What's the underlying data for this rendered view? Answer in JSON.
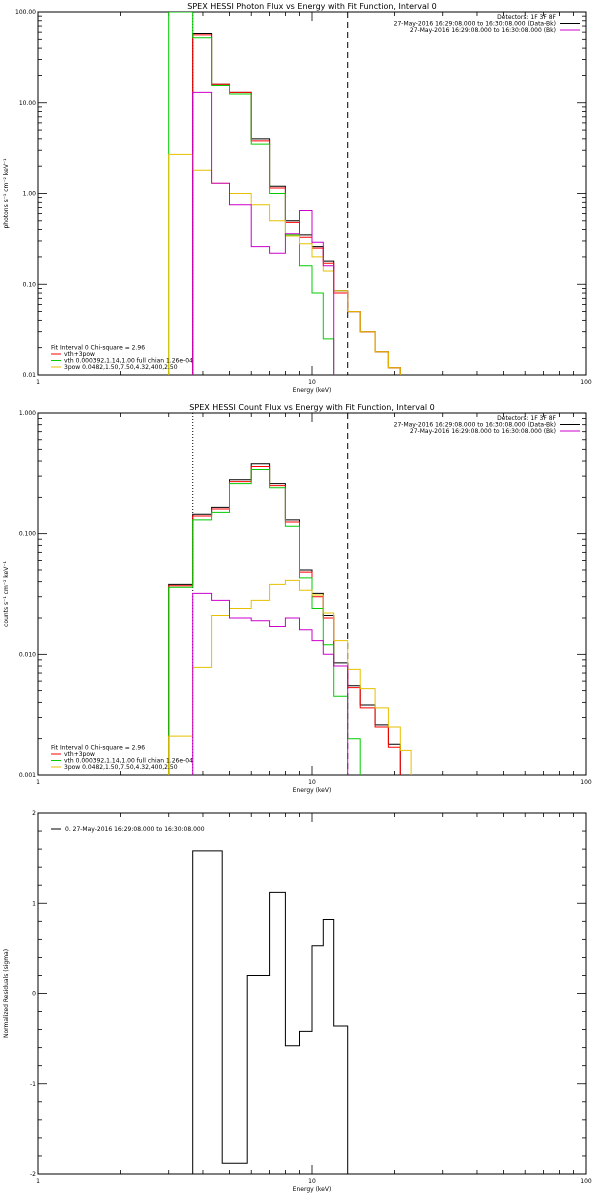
{
  "chart_data": [
    {
      "type": "line",
      "title": "SPEX HESSI Photon Flux vs Energy with Fit Function, Interval 0",
      "xlabel": "Energy (keV)",
      "ylabel": "photons s⁻¹ cm⁻² keV⁻¹",
      "xscale": "log",
      "yscale": "log",
      "xlim": [
        1,
        100
      ],
      "ylim": [
        0.01,
        100
      ],
      "x_ticks": [
        {
          "v": 1,
          "label": "1"
        },
        {
          "v": 10,
          "label": "10"
        },
        {
          "v": 100,
          "label": "100"
        }
      ],
      "y_ticks": [
        {
          "v": 0.01,
          "label": "0.01"
        },
        {
          "v": 0.1,
          "label": "0.10"
        },
        {
          "v": 1,
          "label": "1.00"
        },
        {
          "v": 10,
          "label": "10.00"
        },
        {
          "v": 100,
          "label": "100.00"
        }
      ],
      "header": [
        "Detectors: 1F 3F 8F",
        "27-May-2016 16:29:08.000 to 16:30:08.000 (Data-Bk)",
        "27-May-2016 16:29:08.000 to 16:30:08.000 (Bk)"
      ],
      "header_colors": [
        "#000000",
        "#000000",
        "#cc00cc"
      ],
      "legend": [
        "Fit Interval 0   Chi-square = 2.96",
        "vth+3pow",
        "vth 0.000392,1.14,1.00  full chian 1.26e-04",
        "3pow 0.0482,1.50,7.50,4.32,400,2.50"
      ],
      "legend_colors": [
        "#000000",
        "#ff0000",
        "#00cc00",
        "#e6c000"
      ],
      "vlines": [
        {
          "x": 3.67,
          "style": "dotted"
        },
        {
          "x": 13.5,
          "style": "dashed"
        }
      ],
      "edges": [
        3.0,
        3.67,
        4.3,
        5.0,
        6.0,
        7.0,
        8.0,
        9.0,
        10.0,
        11.0,
        12.0,
        13.5,
        15.0,
        17.0,
        19.0,
        21.0
      ],
      "series": [
        {
          "color": "#000000",
          "values": [
            null,
            58,
            16,
            13,
            4.0,
            1.2,
            0.5,
            0.35,
            0.26,
            0.18,
            0.085,
            0.05,
            0.03,
            0.018,
            0.012
          ]
        },
        {
          "color": "#ff0000",
          "values": [
            null,
            56,
            16,
            13,
            3.8,
            1.15,
            0.48,
            0.33,
            0.25,
            0.17,
            0.08,
            0.05,
            0.03,
            0.018,
            0.012
          ]
        },
        {
          "color": "#00cc00",
          "values": [
            100,
            52,
            15.5,
            12.5,
            3.5,
            1.0,
            0.35,
            0.16,
            0.08,
            0.025,
            null,
            null,
            null,
            null,
            null
          ]
        },
        {
          "color": "#e6c000",
          "values": [
            2.7,
            1.8,
            1.3,
            1.0,
            0.75,
            0.5,
            0.34,
            0.28,
            0.2,
            0.14,
            0.085,
            0.05,
            0.03,
            0.018,
            0.012
          ]
        },
        {
          "color": "#cc00cc",
          "values": [
            null,
            13,
            1.3,
            0.75,
            0.26,
            0.22,
            0.36,
            0.65,
            0.29,
            0.16,
            null,
            null,
            null,
            null,
            null
          ]
        }
      ]
    },
    {
      "type": "line",
      "title": "SPEX HESSI Count Flux vs Energy with Fit Function, Interval 0",
      "xlabel": "Energy (keV)",
      "ylabel": "counts s⁻¹ cm⁻² keV⁻¹",
      "xscale": "log",
      "yscale": "log",
      "xlim": [
        1,
        100
      ],
      "ylim": [
        0.001,
        1
      ],
      "x_ticks": [
        {
          "v": 1,
          "label": "1"
        },
        {
          "v": 10,
          "label": "10"
        },
        {
          "v": 100,
          "label": "100"
        }
      ],
      "y_ticks": [
        {
          "v": 0.001,
          "label": "0.001"
        },
        {
          "v": 0.01,
          "label": "0.010"
        },
        {
          "v": 0.1,
          "label": "0.100"
        },
        {
          "v": 1,
          "label": "1.000"
        }
      ],
      "header": [
        "Detectors: 1F 3F 8F",
        "27-May-2016 16:29:08.000 to 16:30:08.000 (Data-Bk)",
        "27-May-2016 16:29:08.000 to 16:30:08.000 (Bk)"
      ],
      "header_colors": [
        "#000000",
        "#000000",
        "#cc00cc"
      ],
      "legend": [
        "Fit Interval 0   Chi-square = 2.96",
        "vth+3pow",
        "vth 0.000392,1.14,1.00  full chian 1.26e-04",
        "3pow 0.0482,1.50,7.50,4.32,400,2.50"
      ],
      "legend_colors": [
        "#000000",
        "#ff0000",
        "#00cc00",
        "#e6c000"
      ],
      "vlines": [
        {
          "x": 3.67,
          "style": "dotted"
        },
        {
          "x": 13.5,
          "style": "dashed"
        }
      ],
      "edges": [
        3.0,
        3.67,
        4.3,
        5.0,
        6.0,
        7.0,
        8.0,
        9.0,
        10.0,
        11.0,
        12.0,
        13.5,
        15.0,
        17.0,
        19.0,
        21.0,
        23.0
      ],
      "series": [
        {
          "color": "#000000",
          "values": [
            0.038,
            0.145,
            0.165,
            0.28,
            0.38,
            0.26,
            0.13,
            0.05,
            0.032,
            0.021,
            0.0085,
            0.0055,
            0.0038,
            0.0026,
            0.0018,
            null
          ]
        },
        {
          "color": "#ff0000",
          "values": [
            0.037,
            0.14,
            0.16,
            0.27,
            0.36,
            0.25,
            0.125,
            0.048,
            0.03,
            0.02,
            0.008,
            0.0053,
            0.0036,
            0.0025,
            0.0017,
            null
          ]
        },
        {
          "color": "#00cc00",
          "values": [
            0.036,
            0.13,
            0.15,
            0.26,
            0.34,
            0.24,
            0.115,
            0.043,
            0.024,
            0.012,
            0.0045,
            0.002,
            null,
            null,
            null,
            null
          ]
        },
        {
          "color": "#e6c000",
          "values": [
            0.0021,
            0.0078,
            0.021,
            0.024,
            0.028,
            0.038,
            0.041,
            0.034,
            0.031,
            0.022,
            0.013,
            0.0075,
            0.0052,
            0.0036,
            0.0025,
            0.0016
          ]
        },
        {
          "color": "#cc00cc",
          "values": [
            null,
            0.032,
            0.028,
            0.02,
            0.019,
            0.017,
            0.02,
            0.016,
            0.013,
            0.01,
            0.008,
            null,
            null,
            null,
            null,
            null
          ]
        }
      ]
    },
    {
      "type": "line",
      "title": "",
      "xlabel": "Energy (keV)",
      "ylabel": "Normalized Residuals (sigma)",
      "xscale": "log",
      "yscale": "linear",
      "xlim": [
        1,
        100
      ],
      "ylim": [
        -2,
        2
      ],
      "x_ticks": [
        {
          "v": 1,
          "label": "1"
        },
        {
          "v": 10,
          "label": "10"
        },
        {
          "v": 100,
          "label": "100"
        }
      ],
      "y_ticks": [
        {
          "v": -2,
          "label": "-2"
        },
        {
          "v": -1,
          "label": "-1"
        },
        {
          "v": 0,
          "label": "0"
        },
        {
          "v": 1,
          "label": "1"
        },
        {
          "v": 2,
          "label": "2"
        }
      ],
      "legend": [
        "0. 27-May-2016 16:29:08.000 to 16:30:08.000"
      ],
      "legend_colors": [
        "#000000"
      ],
      "edges": [
        3.67,
        4.7,
        5.8,
        7.0,
        8.0,
        9.0,
        10.0,
        11.0,
        12.0,
        13.5
      ],
      "series": [
        {
          "color": "#000000",
          "values": [
            1.58,
            -1.88,
            0.2,
            1.12,
            -0.58,
            -0.42,
            0.53,
            0.82,
            -0.36
          ]
        }
      ]
    }
  ]
}
